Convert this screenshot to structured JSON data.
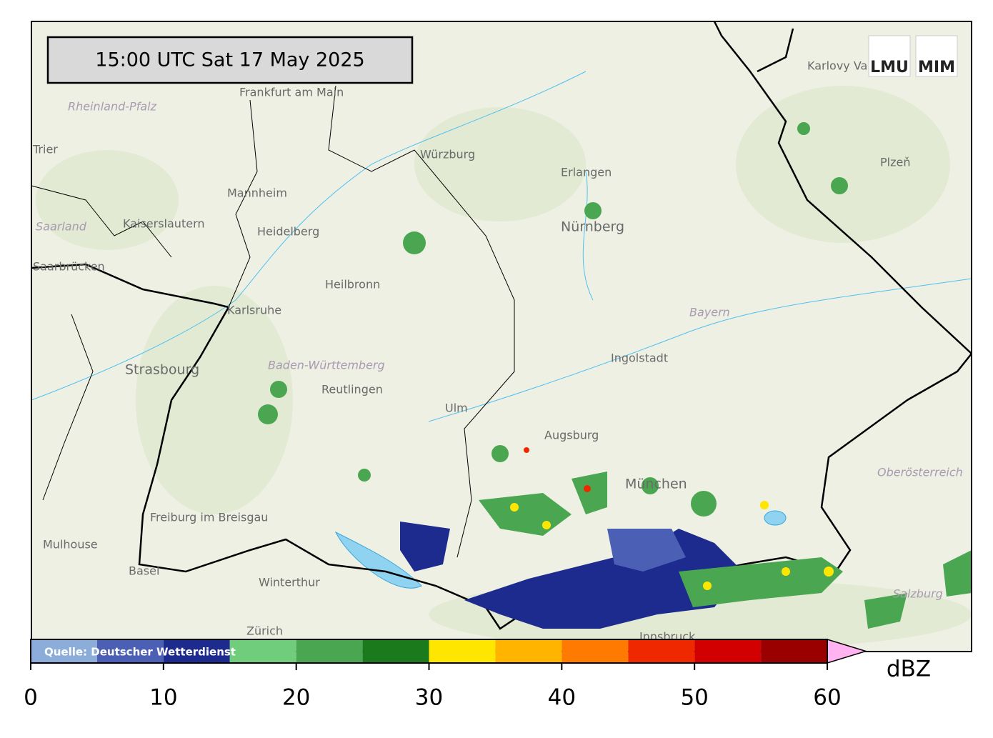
{
  "timestamp": "15:00 UTC  Sat 17 May 2025",
  "logos": [
    "LMU",
    "MIM"
  ],
  "source": "Quelle: Deutscher Wetterdienst",
  "places": [
    "Frankfurt am Main",
    "Rheinland-Pfalz",
    "Trier",
    "Würzburg",
    "Erlangen",
    "Nürnberg",
    "Mannheim",
    "Heidelberg",
    "Kaiserslautern",
    "Saarland",
    "Saarbrücken",
    "Heilbronn",
    "Karlsruhe",
    "Strasbourg",
    "Baden-Württemberg",
    "Reutlingen",
    "Ulm",
    "Augsburg",
    "Ingolstadt",
    "Bayern",
    "München",
    "Freiburg im Breisgau",
    "Mulhouse",
    "Basel",
    "Winterthur",
    "Zürich",
    "Innsbruck",
    "Salzburg",
    "Oberösterreich",
    "Plzeň",
    "Karlovy Vary"
  ],
  "colorbar": {
    "unit": "dBZ",
    "bounds": [
      0,
      5,
      10,
      15,
      20,
      25,
      30,
      35,
      40,
      45,
      50,
      55,
      60
    ],
    "colors": [
      "#8cadd9",
      "#4b5fb4",
      "#1d2a8e",
      "#70cd7c",
      "#4aa650",
      "#1b7a1b",
      "#ffe600",
      "#ffb400",
      "#ff7a00",
      "#f02800",
      "#d20000",
      "#9b0000"
    ],
    "over_color": "#ffb3f0",
    "ticks": [
      0,
      10,
      20,
      30,
      40,
      50,
      60
    ]
  }
}
